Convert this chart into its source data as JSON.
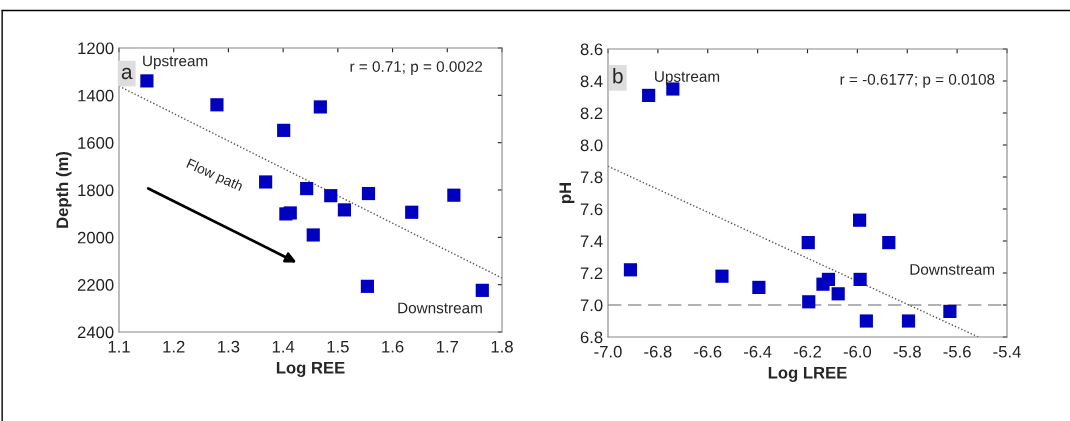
{
  "chart_data": [
    {
      "type": "scatter",
      "xlabel": "Log REE",
      "ylabel": "Depth (m)",
      "xlim": [
        1.1,
        1.8
      ],
      "xticks": [
        1.1,
        1.2,
        1.3,
        1.4,
        1.5,
        1.6,
        1.7,
        1.8
      ],
      "ylim": [
        2400,
        1200
      ],
      "yticks": [
        1200,
        1400,
        1600,
        1800,
        2000,
        2200,
        2400
      ],
      "grid": false,
      "legend": false,
      "annotations": [
        "a",
        "Upstream",
        "r = 0.71; p = 0.0022",
        "Flow path",
        "Downstream"
      ],
      "series": [
        {
          "marker": "square",
          "color": "#0000c0",
          "x": [
            1.151,
            1.279,
            1.468,
            1.401,
            1.368,
            1.443,
            1.487,
            1.556,
            1.712,
            1.405,
            1.413,
            1.512,
            1.635,
            1.455,
            1.554,
            1.764
          ],
          "values": [
            1339,
            1440,
            1449,
            1548,
            1766,
            1794,
            1824,
            1815,
            1822,
            1901,
            1897,
            1884,
            1894,
            1990,
            2207,
            2224
          ]
        },
        {
          "type": "line",
          "color": "#555555",
          "line_style": "dotted",
          "x": [
            1.1,
            1.8
          ],
          "values": [
            1361,
            2172
          ]
        }
      ]
    },
    {
      "type": "scatter",
      "xlabel": "Log LREE",
      "ylabel": "pH",
      "xlim": [
        -7.0,
        -5.4
      ],
      "xticks": [
        {
          "value": -7.0,
          "label": "-7.0"
        },
        {
          "value": -6.8,
          "label": "-6.8"
        },
        {
          "value": -6.6,
          "label": "-6.6"
        },
        {
          "value": -6.4,
          "label": "-6.4"
        },
        {
          "value": -6.2,
          "label": "-6.2"
        },
        {
          "value": -6.0,
          "label": "-6.0"
        },
        {
          "value": -5.8,
          "label": "-5.8"
        },
        {
          "value": -5.6,
          "label": "-5.6"
        },
        {
          "value": -5.4,
          "label": "-5.4"
        }
      ],
      "ylim": [
        6.8,
        8.6
      ],
      "yticks": [
        6.8,
        {
          "value": 7.0,
          "label": "7.0"
        },
        7.2,
        7.4,
        7.6,
        {
          "value": 7.8,
          "label": "7.8"
        },
        {
          "value": 8.0,
          "label": "8.0"
        },
        8.2,
        8.4,
        8.6
      ],
      "grid": false,
      "legend": false,
      "annotations": [
        "b",
        "Upstream",
        "r = -0.6177; p = 0.0108",
        "Downstream"
      ],
      "ref_lines": [
        {
          "axis": "y",
          "value": 7.0,
          "color": "#999999",
          "line_style": "dashed"
        }
      ],
      "series": [
        {
          "marker": "square",
          "color": "#0000c0",
          "x": [
            -6.91,
            -6.837,
            -6.74,
            -6.543,
            -6.395,
            -6.197,
            -6.195,
            -6.138,
            -6.116,
            -6.077,
            -5.991,
            -5.989,
            -5.964,
            -5.874,
            -5.795,
            -5.629
          ],
          "values": [
            7.22,
            8.31,
            8.35,
            7.18,
            7.11,
            7.39,
            7.02,
            7.13,
            7.16,
            7.07,
            7.53,
            7.16,
            6.9,
            7.39,
            6.9,
            6.96
          ]
        },
        {
          "type": "line",
          "color": "#555555",
          "line_style": "dotted",
          "x": [
            -7.0,
            -5.515
          ],
          "values": [
            7.867,
            6.8
          ]
        }
      ]
    }
  ]
}
